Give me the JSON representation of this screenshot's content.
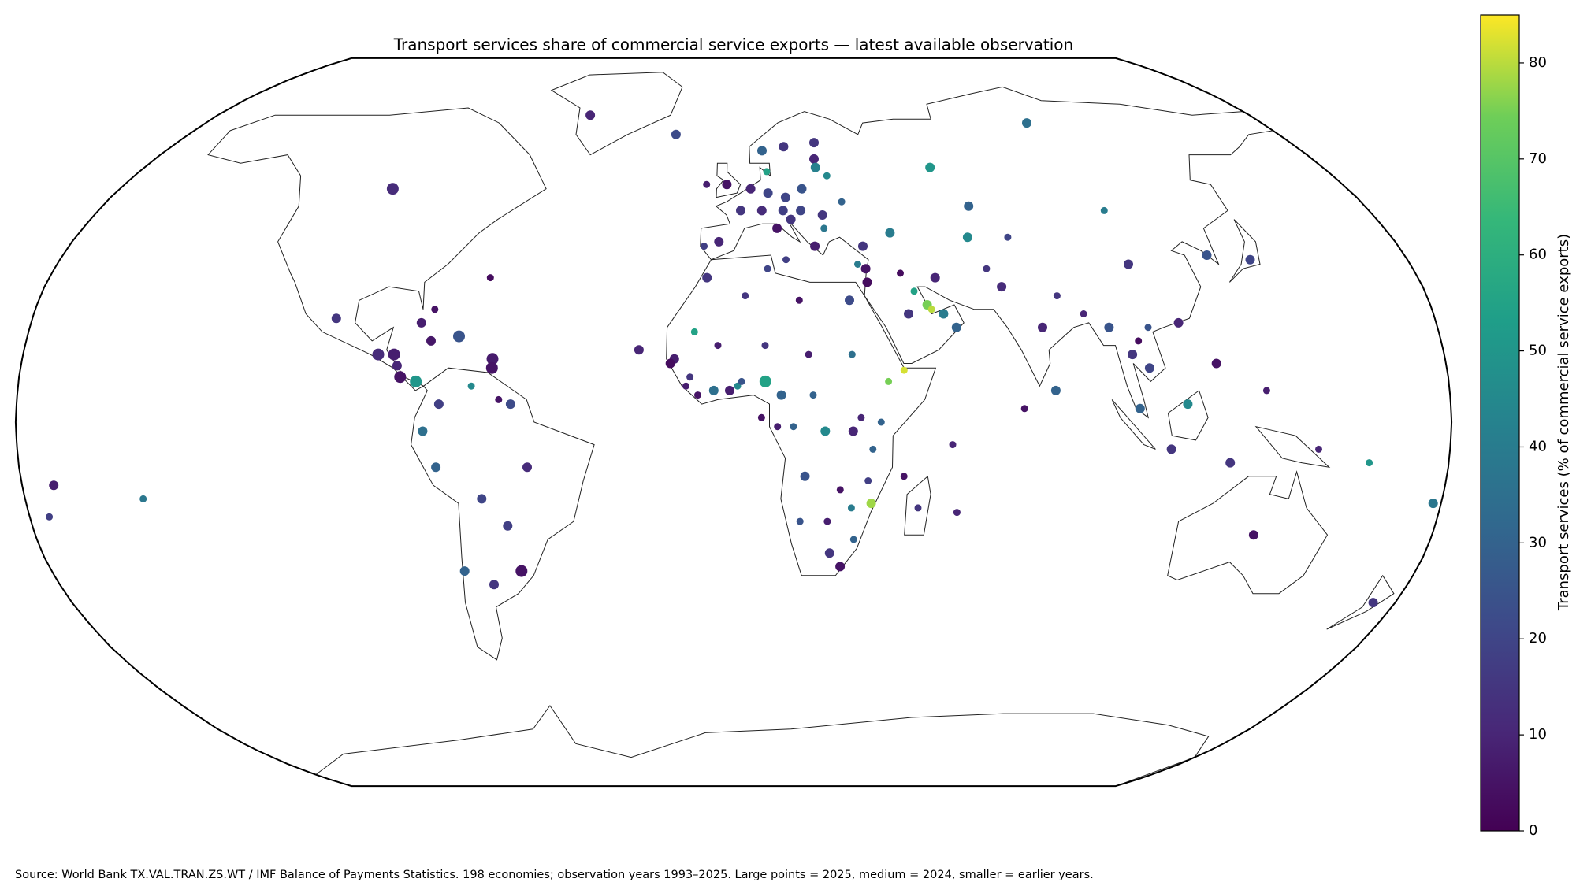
{
  "chart_data": {
    "type": "scatter-map",
    "title": "Transport services share of commercial service exports — latest available observation",
    "colorbar_label": "Transport services (% of commercial service exports)",
    "source": "Source: World Bank TX.VAL.TRAN.ZS.WT / IMF Balance of Payments Statistics. 198 economies; observation years 1993–2025. Large points = 2025, medium = 2024, smaller = earlier years.",
    "projection": "robinson",
    "colormap": "viridis",
    "clim": [
      0,
      85
    ],
    "cticks": [
      0,
      10,
      20,
      30,
      40,
      50,
      60,
      70,
      80
    ],
    "points": [
      {
        "lon": -50,
        "lat": 70,
        "value": 10,
        "year": 2024
      },
      {
        "lon": -19,
        "lat": 65,
        "value": 22,
        "year": 2024
      },
      {
        "lon": -100,
        "lat": 52,
        "value": 12,
        "year": 2025
      },
      {
        "lon": -64,
        "lat": 32,
        "value": 3,
        "year": 2022
      },
      {
        "lon": -102,
        "lat": 23,
        "value": 15,
        "year": 2024
      },
      {
        "lon": -77,
        "lat": 25,
        "value": 5,
        "year": 2022
      },
      {
        "lon": -80,
        "lat": 22,
        "value": 8,
        "year": 2024
      },
      {
        "lon": -77,
        "lat": 18,
        "value": 6,
        "year": 2024
      },
      {
        "lon": -70,
        "lat": 19,
        "value": 25,
        "year": 2025
      },
      {
        "lon": -90,
        "lat": 15,
        "value": 12,
        "year": 2025
      },
      {
        "lon": -86,
        "lat": 15,
        "value": 8,
        "year": 2025
      },
      {
        "lon": -85,
        "lat": 12.5,
        "value": 10,
        "year": 2024
      },
      {
        "lon": -84,
        "lat": 10,
        "value": 5,
        "year": 2025
      },
      {
        "lon": -80,
        "lat": 9,
        "value": 50,
        "year": 2025
      },
      {
        "lon": -61,
        "lat": 14,
        "value": 7,
        "year": 2025
      },
      {
        "lon": -61,
        "lat": 12,
        "value": 5,
        "year": 2025
      },
      {
        "lon": -74,
        "lat": 4,
        "value": 18,
        "year": 2024
      },
      {
        "lon": -66,
        "lat": 8,
        "value": 45,
        "year": 2022
      },
      {
        "lon": -59,
        "lat": 5,
        "value": 5,
        "year": 2022
      },
      {
        "lon": -56,
        "lat": 4,
        "value": 22,
        "year": 2024
      },
      {
        "lon": -78,
        "lat": -2,
        "value": 35,
        "year": 2024
      },
      {
        "lon": -75,
        "lat": -10,
        "value": 30,
        "year": 2024
      },
      {
        "lon": -52,
        "lat": -10,
        "value": 12,
        "year": 2024
      },
      {
        "lon": -64,
        "lat": -17,
        "value": 20,
        "year": 2024
      },
      {
        "lon": -58,
        "lat": -23,
        "value": 18,
        "year": 2024
      },
      {
        "lon": -71,
        "lat": -33,
        "value": 30,
        "year": 2024
      },
      {
        "lon": -64,
        "lat": -36,
        "value": 15,
        "year": 2024
      },
      {
        "lon": -56,
        "lat": -33,
        "value": 5,
        "year": 2025
      },
      {
        "lon": -172,
        "lat": -14,
        "value": 8,
        "year": 2024
      },
      {
        "lon": -175,
        "lat": -21,
        "value": 18,
        "year": 2022
      },
      {
        "lon": -150,
        "lat": -17,
        "value": 38,
        "year": 2022
      },
      {
        "lon": -2,
        "lat": 53,
        "value": 5,
        "year": 2024
      },
      {
        "lon": -8,
        "lat": 53,
        "value": 8,
        "year": 2022
      },
      {
        "lon": -8,
        "lat": 39,
        "value": 18,
        "year": 2022
      },
      {
        "lon": -4,
        "lat": 40,
        "value": 10,
        "year": 2024
      },
      {
        "lon": 2,
        "lat": 47,
        "value": 15,
        "year": 2024
      },
      {
        "lon": 5,
        "lat": 52,
        "value": 10,
        "year": 2024
      },
      {
        "lon": 10,
        "lat": 51,
        "value": 20,
        "year": 2024
      },
      {
        "lon": 9,
        "lat": 61,
        "value": 30,
        "year": 2024
      },
      {
        "lon": 16,
        "lat": 62,
        "value": 15,
        "year": 2024
      },
      {
        "lon": 26,
        "lat": 63,
        "value": 15,
        "year": 2024
      },
      {
        "lon": 10,
        "lat": 56,
        "value": 55,
        "year": 2022
      },
      {
        "lon": 25,
        "lat": 59,
        "value": 10,
        "year": 2024
      },
      {
        "lon": 25,
        "lat": 57,
        "value": 42,
        "year": 2024
      },
      {
        "lon": 28,
        "lat": 55,
        "value": 45,
        "year": 2022
      },
      {
        "lon": 20,
        "lat": 52,
        "value": 25,
        "year": 2024
      },
      {
        "lon": 15,
        "lat": 50,
        "value": 20,
        "year": 2024
      },
      {
        "lon": 14,
        "lat": 47,
        "value": 18,
        "year": 2024
      },
      {
        "lon": 8,
        "lat": 47,
        "value": 12,
        "year": 2024
      },
      {
        "lon": 12,
        "lat": 43,
        "value": 5,
        "year": 2024
      },
      {
        "lon": 16,
        "lat": 45,
        "value": 15,
        "year": 2024
      },
      {
        "lon": 19,
        "lat": 47,
        "value": 20,
        "year": 2024
      },
      {
        "lon": 25,
        "lat": 46,
        "value": 15,
        "year": 2024
      },
      {
        "lon": 31,
        "lat": 49,
        "value": 30,
        "year": 2022
      },
      {
        "lon": 25,
        "lat": 43,
        "value": 38,
        "year": 2022
      },
      {
        "lon": 22,
        "lat": 39,
        "value": 8,
        "year": 2024
      },
      {
        "lon": 35,
        "lat": 39,
        "value": 15,
        "year": 2024
      },
      {
        "lon": 33,
        "lat": 35,
        "value": 40,
        "year": 2022
      },
      {
        "lon": 14,
        "lat": 36,
        "value": 18,
        "year": 2022
      },
      {
        "lon": 43,
        "lat": 42,
        "value": 40,
        "year": 2024
      },
      {
        "lon": 60,
        "lat": 57,
        "value": 50,
        "year": 2024
      },
      {
        "lon": 67,
        "lat": 48,
        "value": 30,
        "year": 2024
      },
      {
        "lon": 64,
        "lat": 41,
        "value": 45,
        "year": 2024
      },
      {
        "lon": 75,
        "lat": 41,
        "value": 20,
        "year": 2022
      },
      {
        "lon": 105,
        "lat": 47,
        "value": 40,
        "year": 2022
      },
      {
        "lon": 100,
        "lat": 68,
        "value": 35,
        "year": 2024
      },
      {
        "lon": 105,
        "lat": 35,
        "value": 15,
        "year": 2024
      },
      {
        "lon": 127,
        "lat": 37,
        "value": 25,
        "year": 2024
      },
      {
        "lon": 138,
        "lat": 36,
        "value": 20,
        "year": 2024
      },
      {
        "lon": 35,
        "lat": 34,
        "value": 5,
        "year": 2024
      },
      {
        "lon": 35,
        "lat": 31,
        "value": 3,
        "year": 2024
      },
      {
        "lon": 44,
        "lat": 33,
        "value": 3,
        "year": 2022
      },
      {
        "lon": 47,
        "lat": 29,
        "value": 55,
        "year": 2022
      },
      {
        "lon": 45,
        "lat": 24,
        "value": 15,
        "year": 2024
      },
      {
        "lon": 50,
        "lat": 26,
        "value": 75,
        "year": 2024
      },
      {
        "lon": 51,
        "lat": 25,
        "value": 80,
        "year": 2022
      },
      {
        "lon": 54,
        "lat": 24,
        "value": 40,
        "year": 2024
      },
      {
        "lon": 57,
        "lat": 21,
        "value": 30,
        "year": 2024
      },
      {
        "lon": 53,
        "lat": 32,
        "value": 10,
        "year": 2024
      },
      {
        "lon": 70,
        "lat": 30,
        "value": 12,
        "year": 2024
      },
      {
        "lon": 67,
        "lat": 34,
        "value": 15,
        "year": 2022
      },
      {
        "lon": 79,
        "lat": 21,
        "value": 10,
        "year": 2024
      },
      {
        "lon": 84,
        "lat": 28,
        "value": 15,
        "year": 2022
      },
      {
        "lon": 90,
        "lat": 24,
        "value": 10,
        "year": 2022
      },
      {
        "lon": 96,
        "lat": 21,
        "value": 25,
        "year": 2024
      },
      {
        "lon": 101,
        "lat": 15,
        "value": 15,
        "year": 2024
      },
      {
        "lon": 105,
        "lat": 12,
        "value": 20,
        "year": 2024
      },
      {
        "lon": 106,
        "lat": 21,
        "value": 25,
        "year": 2022
      },
      {
        "lon": 103,
        "lat": 18,
        "value": 3,
        "year": 2022
      },
      {
        "lon": 114,
        "lat": 22,
        "value": 10,
        "year": 2024
      },
      {
        "lon": 122,
        "lat": 13,
        "value": 5,
        "year": 2024
      },
      {
        "lon": 102,
        "lat": 3,
        "value": 30,
        "year": 2024
      },
      {
        "lon": 114,
        "lat": 4,
        "value": 45,
        "year": 2024
      },
      {
        "lon": 110,
        "lat": -6,
        "value": 15,
        "year": 2024
      },
      {
        "lon": 125,
        "lat": -9,
        "value": 15,
        "year": 2024
      },
      {
        "lon": 81,
        "lat": 7,
        "value": 30,
        "year": 2024
      },
      {
        "lon": 73,
        "lat": 3,
        "value": 5,
        "year": 2022
      },
      {
        "lon": 134,
        "lat": -25,
        "value": 5,
        "year": 2024
      },
      {
        "lon": 174,
        "lat": -40,
        "value": 15,
        "year": 2024
      },
      {
        "lon": 147,
        "lat": -6,
        "value": 10,
        "year": 2022
      },
      {
        "lon": 134,
        "lat": 7,
        "value": 8,
        "year": 2022
      },
      {
        "lon": 178,
        "lat": -18,
        "value": 38,
        "year": 2024
      },
      {
        "lon": 160,
        "lat": -9,
        "value": 50,
        "year": 2022
      },
      {
        "lon": -7,
        "lat": 32,
        "value": 15,
        "year": 2024
      },
      {
        "lon": 3,
        "lat": 28,
        "value": 15,
        "year": 2022
      },
      {
        "lon": 9,
        "lat": 34,
        "value": 20,
        "year": 2022
      },
      {
        "lon": 17,
        "lat": 27,
        "value": 5,
        "year": 2022
      },
      {
        "lon": 30,
        "lat": 27,
        "value": 22,
        "year": 2024
      },
      {
        "lon": -10,
        "lat": 20,
        "value": 55,
        "year": 2022
      },
      {
        "lon": -15,
        "lat": 14,
        "value": 8,
        "year": 2024
      },
      {
        "lon": -16,
        "lat": 13,
        "value": 3,
        "year": 2024
      },
      {
        "lon": -24,
        "lat": 16,
        "value": 10,
        "year": 2024
      },
      {
        "lon": -4,
        "lat": 17,
        "value": 8,
        "year": 2022
      },
      {
        "lon": 8,
        "lat": 17,
        "value": 15,
        "year": 2022
      },
      {
        "lon": 19,
        "lat": 15,
        "value": 8,
        "year": 2022
      },
      {
        "lon": 30,
        "lat": 15,
        "value": 35,
        "year": 2022
      },
      {
        "lon": 43,
        "lat": 11.5,
        "value": 82,
        "year": 2022
      },
      {
        "lon": 39,
        "lat": 9,
        "value": 75,
        "year": 2022
      },
      {
        "lon": -11,
        "lat": 10,
        "value": 15,
        "year": 2022
      },
      {
        "lon": -12,
        "lat": 8,
        "value": 8,
        "year": 2022
      },
      {
        "lon": -9,
        "lat": 6,
        "value": 5,
        "year": 2022
      },
      {
        "lon": -5,
        "lat": 7,
        "value": 35,
        "year": 2024
      },
      {
        "lon": -1,
        "lat": 7,
        "value": 8,
        "year": 2024
      },
      {
        "lon": 1,
        "lat": 8,
        "value": 45,
        "year": 2022
      },
      {
        "lon": 2,
        "lat": 9,
        "value": 25,
        "year": 2022
      },
      {
        "lon": 8,
        "lat": 9,
        "value": 55,
        "year": 2025
      },
      {
        "lon": 12,
        "lat": 6,
        "value": 30,
        "year": 2024
      },
      {
        "lon": 20,
        "lat": 6,
        "value": 30,
        "year": 2022
      },
      {
        "lon": 7,
        "lat": 1,
        "value": 5,
        "year": 2022
      },
      {
        "lon": 11,
        "lat": -1,
        "value": 8,
        "year": 2022
      },
      {
        "lon": 15,
        "lat": -1,
        "value": 30,
        "year": 2022
      },
      {
        "lon": 23,
        "lat": -2,
        "value": 45,
        "year": 2024
      },
      {
        "lon": 32,
        "lat": 1,
        "value": 10,
        "year": 2022
      },
      {
        "lon": 30,
        "lat": -2,
        "value": 10,
        "year": 2024
      },
      {
        "lon": 37,
        "lat": 0,
        "value": 30,
        "year": 2022
      },
      {
        "lon": 35,
        "lat": -6,
        "value": 30,
        "year": 2022
      },
      {
        "lon": 55,
        "lat": -5,
        "value": 10,
        "year": 2022
      },
      {
        "lon": 43,
        "lat": -12,
        "value": 5,
        "year": 2022
      },
      {
        "lon": 34,
        "lat": -13,
        "value": 18,
        "year": 2022
      },
      {
        "lon": 35,
        "lat": -18,
        "value": 78,
        "year": 2024
      },
      {
        "lon": 18,
        "lat": -12,
        "value": 25,
        "year": 2024
      },
      {
        "lon": 27,
        "lat": -15,
        "value": 5,
        "year": 2022
      },
      {
        "lon": 30,
        "lat": -19,
        "value": 40,
        "year": 2022
      },
      {
        "lon": 17,
        "lat": -22,
        "value": 25,
        "year": 2022
      },
      {
        "lon": 24,
        "lat": -22,
        "value": 8,
        "year": 2022
      },
      {
        "lon": 47,
        "lat": -19,
        "value": 15,
        "year": 2022
      },
      {
        "lon": 57,
        "lat": -20,
        "value": 10,
        "year": 2022
      },
      {
        "lon": 25,
        "lat": -29,
        "value": 15,
        "year": 2024
      },
      {
        "lon": 31,
        "lat": -26,
        "value": 30,
        "year": 2022
      },
      {
        "lon": 28,
        "lat": -32,
        "value": 5,
        "year": 2024
      }
    ]
  }
}
